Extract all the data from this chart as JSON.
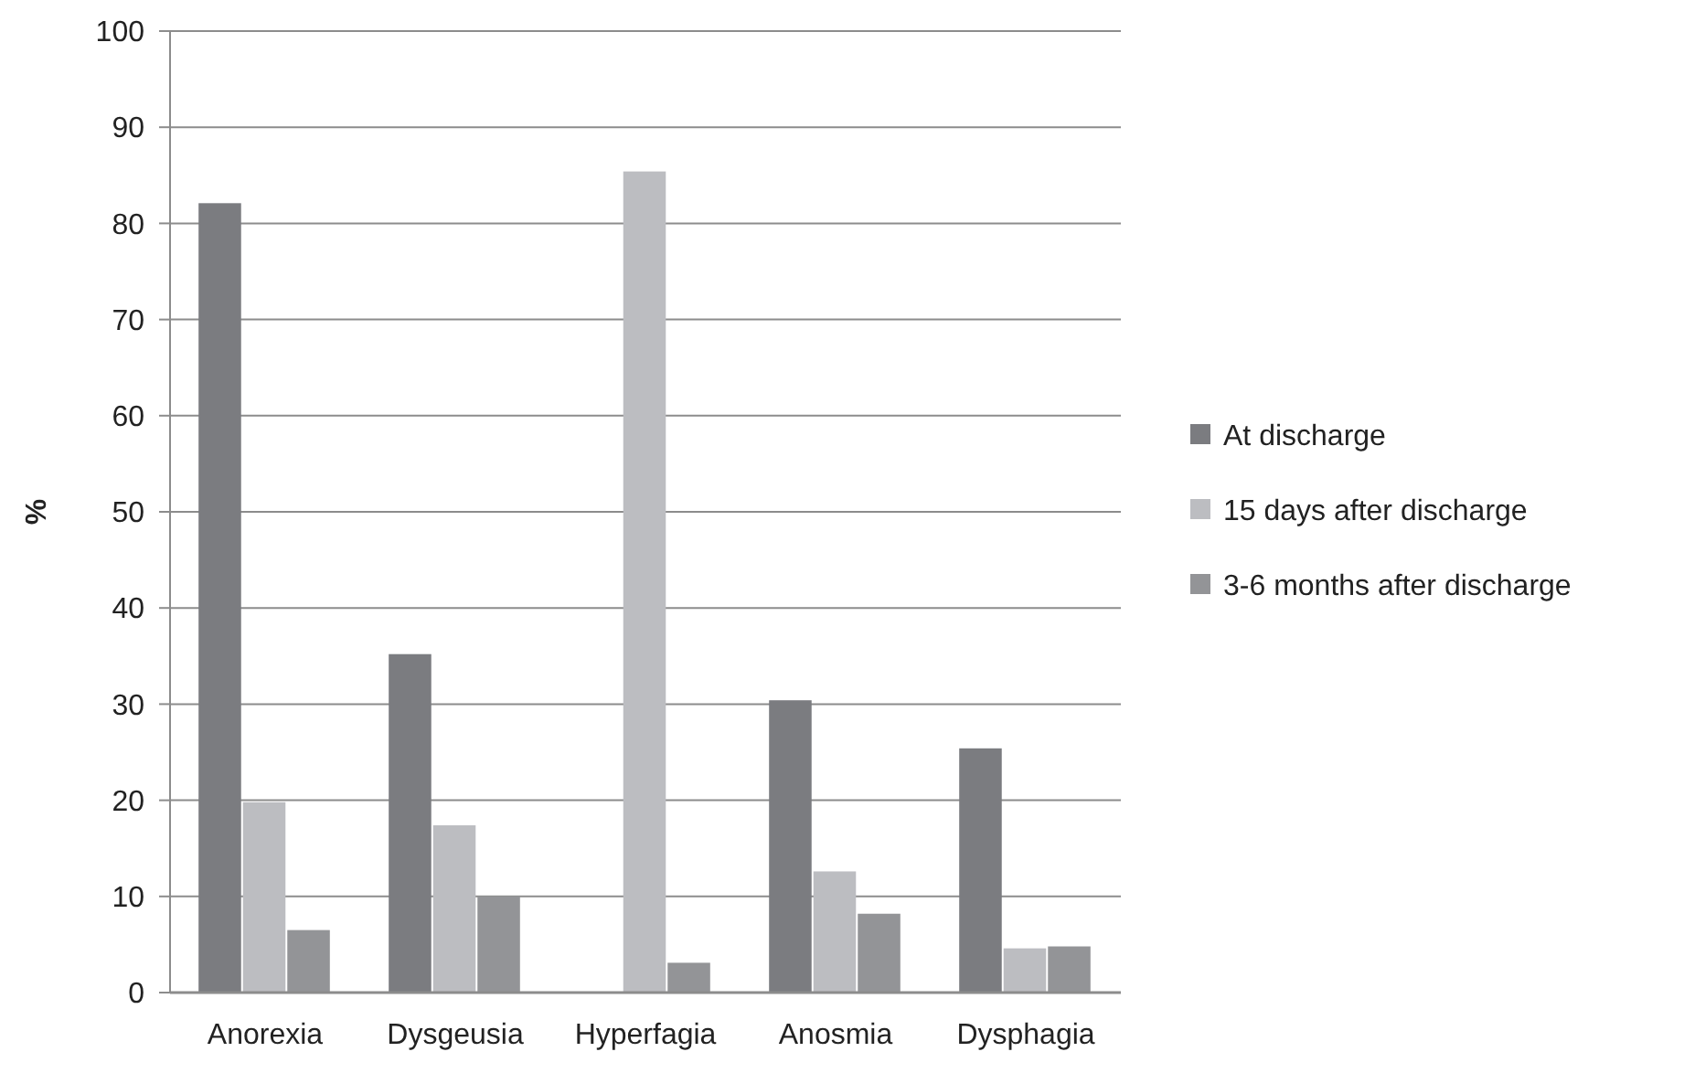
{
  "chart_data": {
    "type": "bar",
    "ylabel": "%",
    "categories": [
      "Anorexia",
      "Dysgeusia",
      "Hyperfagia",
      "Anosmia",
      "Dysphagia"
    ],
    "series": [
      {
        "name": "At discharge",
        "color": "#7b7c80",
        "values": [
          82.1,
          35.2,
          null,
          30.4,
          25.4
        ]
      },
      {
        "name": "15 days after discharge",
        "color": "#bcbdc1",
        "values": [
          19.8,
          17.4,
          85.4,
          12.6,
          4.6
        ]
      },
      {
        "name": "3-6 months after discharge",
        "color": "#939497",
        "values": [
          6.5,
          10.0,
          3.1,
          8.2,
          4.8
        ]
      }
    ],
    "ylim": [
      0,
      100
    ],
    "yticks": [
      0,
      10,
      20,
      30,
      40,
      50,
      60,
      70,
      80,
      90,
      100
    ],
    "grid": "y",
    "legend": "right"
  }
}
